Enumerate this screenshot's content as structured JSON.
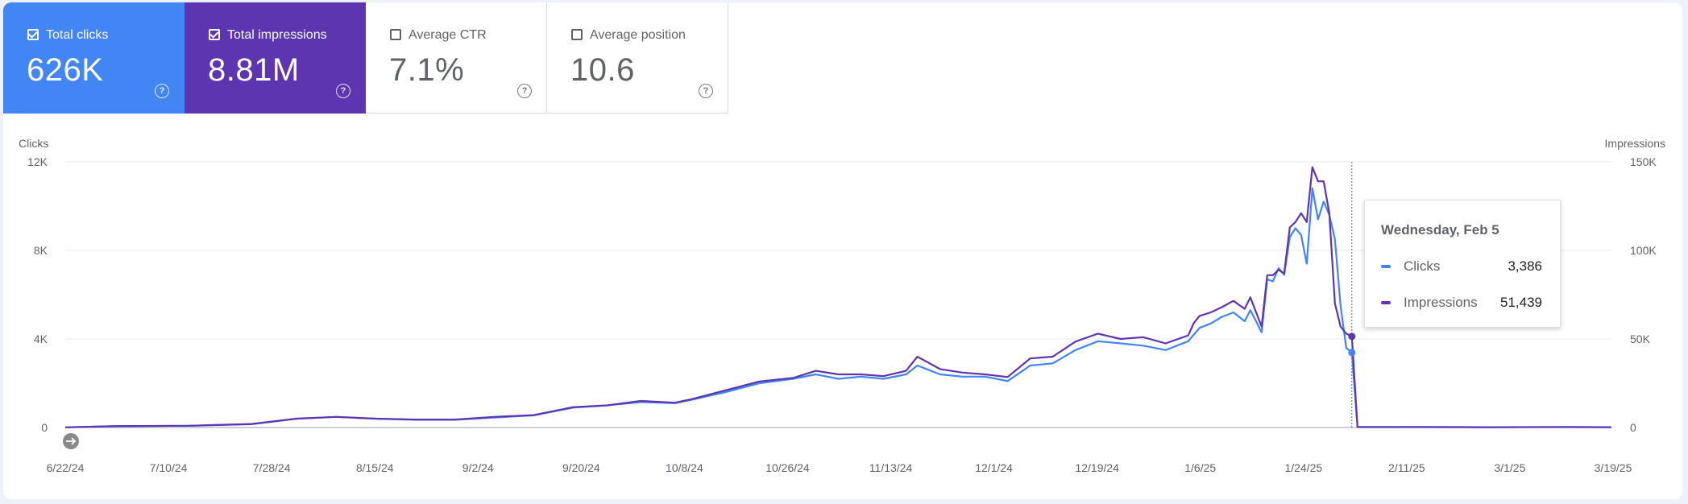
{
  "metrics": [
    {
      "label": "Total clicks",
      "value": "626K",
      "checked": true,
      "color": "#4285f4"
    },
    {
      "label": "Total impressions",
      "value": "8.81M",
      "checked": true,
      "color": "#5e35b1"
    },
    {
      "label": "Average CTR",
      "value": "7.1%",
      "checked": false,
      "color": "#ffffff"
    },
    {
      "label": "Average position",
      "value": "10.6",
      "checked": false,
      "color": "#ffffff"
    }
  ],
  "help_glyph": "?",
  "tooltip": {
    "date": "Wednesday, Feb 5",
    "rows": [
      {
        "name": "Clicks",
        "value": "3,386",
        "color": "#4285f4"
      },
      {
        "name": "Impressions",
        "value": "51,439",
        "color": "#5e35b1"
      }
    ]
  },
  "chart_data": {
    "type": "line",
    "grid": true,
    "legend": "none",
    "left_axis": {
      "label": "Clicks",
      "ticks": [
        "0",
        "4K",
        "8K",
        "12K"
      ],
      "range": [
        0,
        12000
      ]
    },
    "right_axis": {
      "label": "Impressions",
      "ticks": [
        "0",
        "50K",
        "100K",
        "150K"
      ],
      "range": [
        0,
        150000
      ]
    },
    "x_ticks": [
      "6/22/24",
      "7/10/24",
      "7/28/24",
      "8/15/24",
      "9/2/24",
      "9/20/24",
      "10/8/24",
      "10/26/24",
      "11/13/24",
      "12/1/24",
      "12/19/24",
      "1/6/25",
      "1/24/25",
      "2/11/25",
      "3/1/25",
      "3/19/25"
    ],
    "x_start": "2024-06-22",
    "x_end": "2025-03-23",
    "highlight_date": "2025-02-05",
    "series": [
      {
        "name": "Clicks",
        "axis": "left",
        "color": "#4285f4",
        "points": [
          [
            "2024-06-22",
            10
          ],
          [
            "2024-07-01",
            60
          ],
          [
            "2024-07-14",
            80
          ],
          [
            "2024-07-25",
            150
          ],
          [
            "2024-08-02",
            400
          ],
          [
            "2024-08-09",
            480
          ],
          [
            "2024-08-16",
            400
          ],
          [
            "2024-08-23",
            350
          ],
          [
            "2024-08-30",
            350
          ],
          [
            "2024-09-06",
            450
          ],
          [
            "2024-09-13",
            550
          ],
          [
            "2024-09-20",
            900
          ],
          [
            "2024-09-26",
            1000
          ],
          [
            "2024-10-02",
            1150
          ],
          [
            "2024-10-08",
            1100
          ],
          [
            "2024-10-11",
            1250
          ],
          [
            "2024-10-17",
            1600
          ],
          [
            "2024-10-23",
            2000
          ],
          [
            "2024-10-29",
            2200
          ],
          [
            "2024-11-02",
            2400
          ],
          [
            "2024-11-06",
            2200
          ],
          [
            "2024-11-10",
            2300
          ],
          [
            "2024-11-14",
            2200
          ],
          [
            "2024-11-18",
            2400
          ],
          [
            "2024-11-20",
            2800
          ],
          [
            "2024-11-24",
            2400
          ],
          [
            "2024-11-28",
            2300
          ],
          [
            "2024-12-02",
            2300
          ],
          [
            "2024-12-06",
            2100
          ],
          [
            "2024-12-10",
            2800
          ],
          [
            "2024-12-14",
            2900
          ],
          [
            "2024-12-18",
            3500
          ],
          [
            "2024-12-22",
            3900
          ],
          [
            "2024-12-26",
            3800
          ],
          [
            "2024-12-30",
            3700
          ],
          [
            "2025-01-03",
            3500
          ],
          [
            "2025-01-07",
            3900
          ],
          [
            "2025-01-08",
            4200
          ],
          [
            "2025-01-09",
            4500
          ],
          [
            "2025-01-11",
            4700
          ],
          [
            "2025-01-13",
            5000
          ],
          [
            "2025-01-15",
            5200
          ],
          [
            "2025-01-17",
            4800
          ],
          [
            "2025-01-18",
            5300
          ],
          [
            "2025-01-20",
            4300
          ],
          [
            "2025-01-21",
            6700
          ],
          [
            "2025-01-22",
            6600
          ],
          [
            "2025-01-23",
            7200
          ],
          [
            "2025-01-24",
            6900
          ],
          [
            "2025-01-25",
            8600
          ],
          [
            "2025-01-26",
            9000
          ],
          [
            "2025-01-27",
            8700
          ],
          [
            "2025-01-28",
            7400
          ],
          [
            "2025-01-29",
            10800
          ],
          [
            "2025-01-30",
            9400
          ],
          [
            "2025-01-31",
            10200
          ],
          [
            "2025-02-01",
            9600
          ],
          [
            "2025-02-02",
            8500
          ],
          [
            "2025-02-03",
            5500
          ],
          [
            "2025-02-04",
            3600
          ],
          [
            "2025-02-05",
            3386
          ],
          [
            "2025-02-06",
            20
          ],
          [
            "2025-02-15",
            20
          ],
          [
            "2025-03-01",
            15
          ],
          [
            "2025-03-15",
            20
          ],
          [
            "2025-03-23",
            15
          ]
        ]
      },
      {
        "name": "Impressions",
        "axis": "right",
        "color": "#5e35b1",
        "points": [
          [
            "2024-06-22",
            100
          ],
          [
            "2024-07-01",
            800
          ],
          [
            "2024-07-14",
            1000
          ],
          [
            "2024-07-25",
            2000
          ],
          [
            "2024-08-02",
            5000
          ],
          [
            "2024-08-09",
            6000
          ],
          [
            "2024-08-16",
            5000
          ],
          [
            "2024-08-23",
            4500
          ],
          [
            "2024-08-30",
            4500
          ],
          [
            "2024-09-06",
            6000
          ],
          [
            "2024-09-13",
            7000
          ],
          [
            "2024-09-20",
            11500
          ],
          [
            "2024-09-26",
            12500
          ],
          [
            "2024-10-02",
            15000
          ],
          [
            "2024-10-08",
            14000
          ],
          [
            "2024-10-11",
            16000
          ],
          [
            "2024-10-17",
            21000
          ],
          [
            "2024-10-23",
            26000
          ],
          [
            "2024-10-29",
            28000
          ],
          [
            "2024-11-02",
            32000
          ],
          [
            "2024-11-06",
            30000
          ],
          [
            "2024-11-10",
            30000
          ],
          [
            "2024-11-14",
            29000
          ],
          [
            "2024-11-18",
            32000
          ],
          [
            "2024-11-20",
            40000
          ],
          [
            "2024-11-24",
            33000
          ],
          [
            "2024-11-28",
            31000
          ],
          [
            "2024-12-02",
            30000
          ],
          [
            "2024-12-06",
            28500
          ],
          [
            "2024-12-10",
            39000
          ],
          [
            "2024-12-14",
            40000
          ],
          [
            "2024-12-18",
            48500
          ],
          [
            "2024-12-22",
            53000
          ],
          [
            "2024-12-26",
            50000
          ],
          [
            "2024-12-30",
            51000
          ],
          [
            "2025-01-03",
            47500
          ],
          [
            "2025-01-07",
            52000
          ],
          [
            "2025-01-08",
            59000
          ],
          [
            "2025-01-09",
            63000
          ],
          [
            "2025-01-11",
            65000
          ],
          [
            "2025-01-13",
            68000
          ],
          [
            "2025-01-15",
            71500
          ],
          [
            "2025-01-17",
            67000
          ],
          [
            "2025-01-18",
            73500
          ],
          [
            "2025-01-20",
            57000
          ],
          [
            "2025-01-21",
            86000
          ],
          [
            "2025-01-22",
            86000
          ],
          [
            "2025-01-23",
            89000
          ],
          [
            "2025-01-24",
            87000
          ],
          [
            "2025-01-25",
            113000
          ],
          [
            "2025-01-26",
            116000
          ],
          [
            "2025-01-27",
            121000
          ],
          [
            "2025-01-28",
            116000
          ],
          [
            "2025-01-29",
            147000
          ],
          [
            "2025-01-30",
            139000
          ],
          [
            "2025-01-31",
            139000
          ],
          [
            "2025-02-01",
            121000
          ],
          [
            "2025-02-02",
            70000
          ],
          [
            "2025-02-03",
            57000
          ],
          [
            "2025-02-04",
            53000
          ],
          [
            "2025-02-05",
            51439
          ],
          [
            "2025-02-06",
            300
          ],
          [
            "2025-02-15",
            300
          ],
          [
            "2025-03-01",
            200
          ],
          [
            "2025-03-15",
            300
          ],
          [
            "2025-03-23",
            200
          ]
        ]
      }
    ]
  }
}
